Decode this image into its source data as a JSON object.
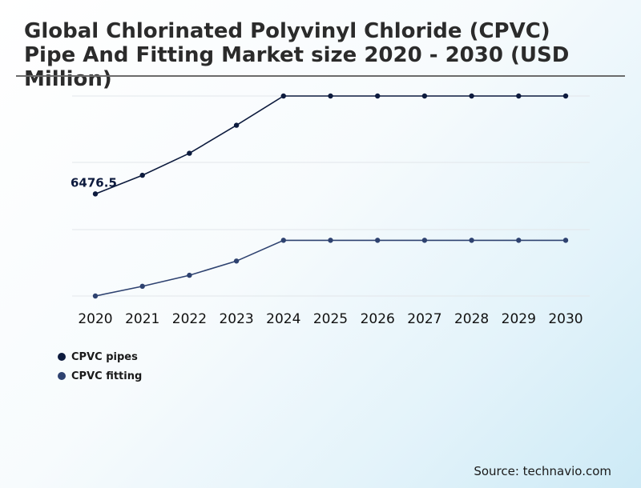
{
  "chart_data": {
    "type": "line",
    "title": "Global Chlorinated Polyvinyl Chloride (CPVC) Pipe And Fitting Market size 2020 - 2030 (USD Million)",
    "categories": [
      "2020",
      "2021",
      "2022",
      "2023",
      "2024",
      "2025",
      "2026",
      "2027",
      "2028",
      "2029",
      "2030"
    ],
    "series": [
      {
        "name": "CPVC pipes",
        "color": "#0d1b3e",
        "values": [
          6476.5,
          6764,
          7104,
          7536,
          7988,
          7988,
          7988,
          7988,
          7988,
          7988,
          7988
        ]
      },
      {
        "name": "CPVC fitting",
        "color": "#2e4270",
        "values": [
          4900,
          5050,
          5220,
          5440,
          5760,
          5760,
          5760,
          5760,
          5760,
          5760,
          5760
        ]
      }
    ],
    "annotations": [
      {
        "series": 0,
        "index": 0,
        "label": "6476.5"
      }
    ],
    "ylim": [
      4900,
      7988
    ],
    "grid": true,
    "legend": "bottom-left"
  },
  "source": "Source: technavio.com"
}
